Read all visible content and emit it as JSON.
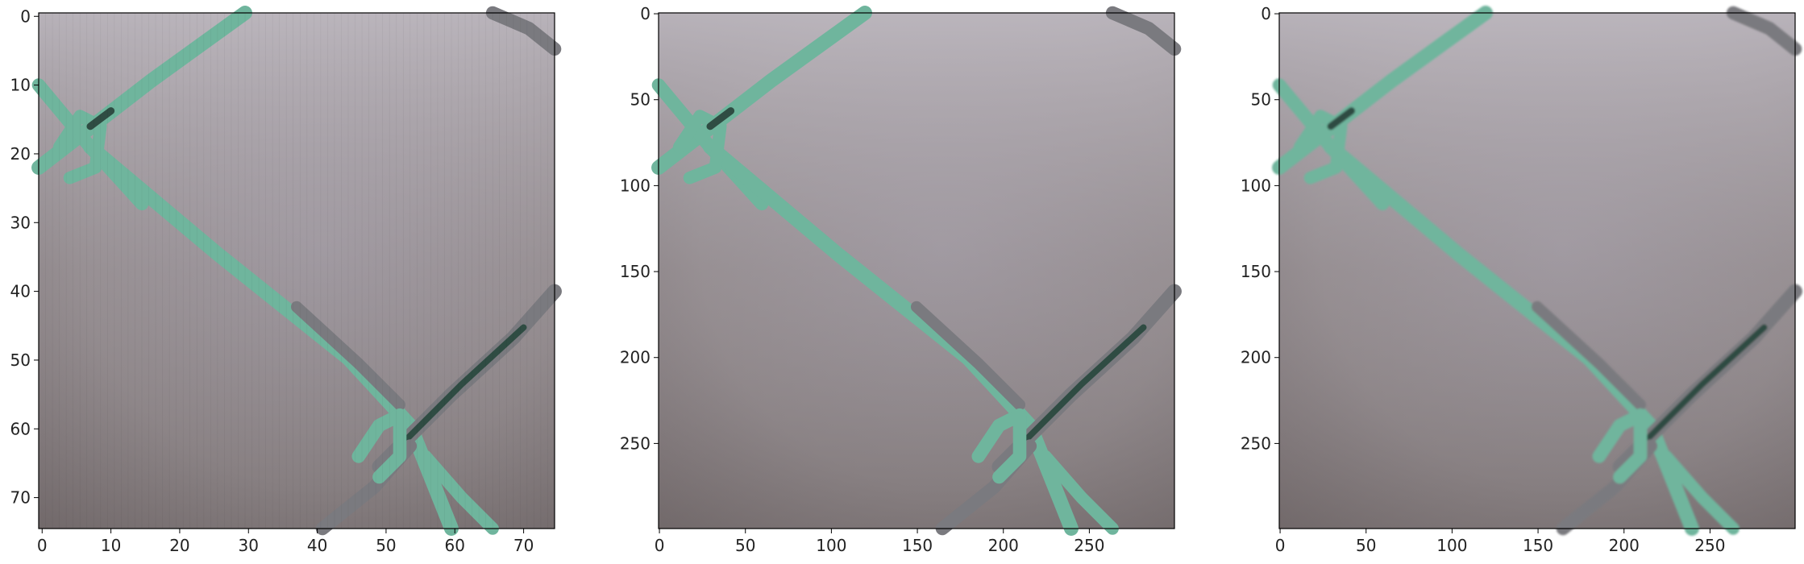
{
  "panels": [
    {
      "id": "low-res",
      "x_ticks": [
        "0",
        "10",
        "20",
        "30",
        "40",
        "50",
        "60",
        "70"
      ],
      "y_ticks": [
        "0",
        "10",
        "20",
        "30",
        "40",
        "50",
        "60",
        "70"
      ],
      "x_range": [
        -0.5,
        74.5
      ],
      "y_range": [
        -0.5,
        74.5
      ]
    },
    {
      "id": "original",
      "x_ticks": [
        "0",
        "50",
        "100",
        "150",
        "200",
        "250"
      ],
      "y_ticks": [
        "0",
        "50",
        "100",
        "150",
        "200",
        "250"
      ],
      "x_range": [
        -0.5,
        299.5
      ],
      "y_range": [
        -0.5,
        299.5
      ]
    },
    {
      "id": "upscaled",
      "x_ticks": [
        "0",
        "50",
        "100",
        "150",
        "200",
        "250"
      ],
      "y_ticks": [
        "0",
        "50",
        "100",
        "150",
        "200",
        "250"
      ],
      "x_range": [
        -0.5,
        299.5
      ],
      "y_range": [
        -0.5,
        299.5
      ]
    }
  ],
  "colors": {
    "wire_green": "#6fb59d",
    "wire_dark": "#2f4c43",
    "wire_grey": "#7a7a7f",
    "background_light": "#b3aeb6",
    "background_dark": "#6f6667"
  }
}
